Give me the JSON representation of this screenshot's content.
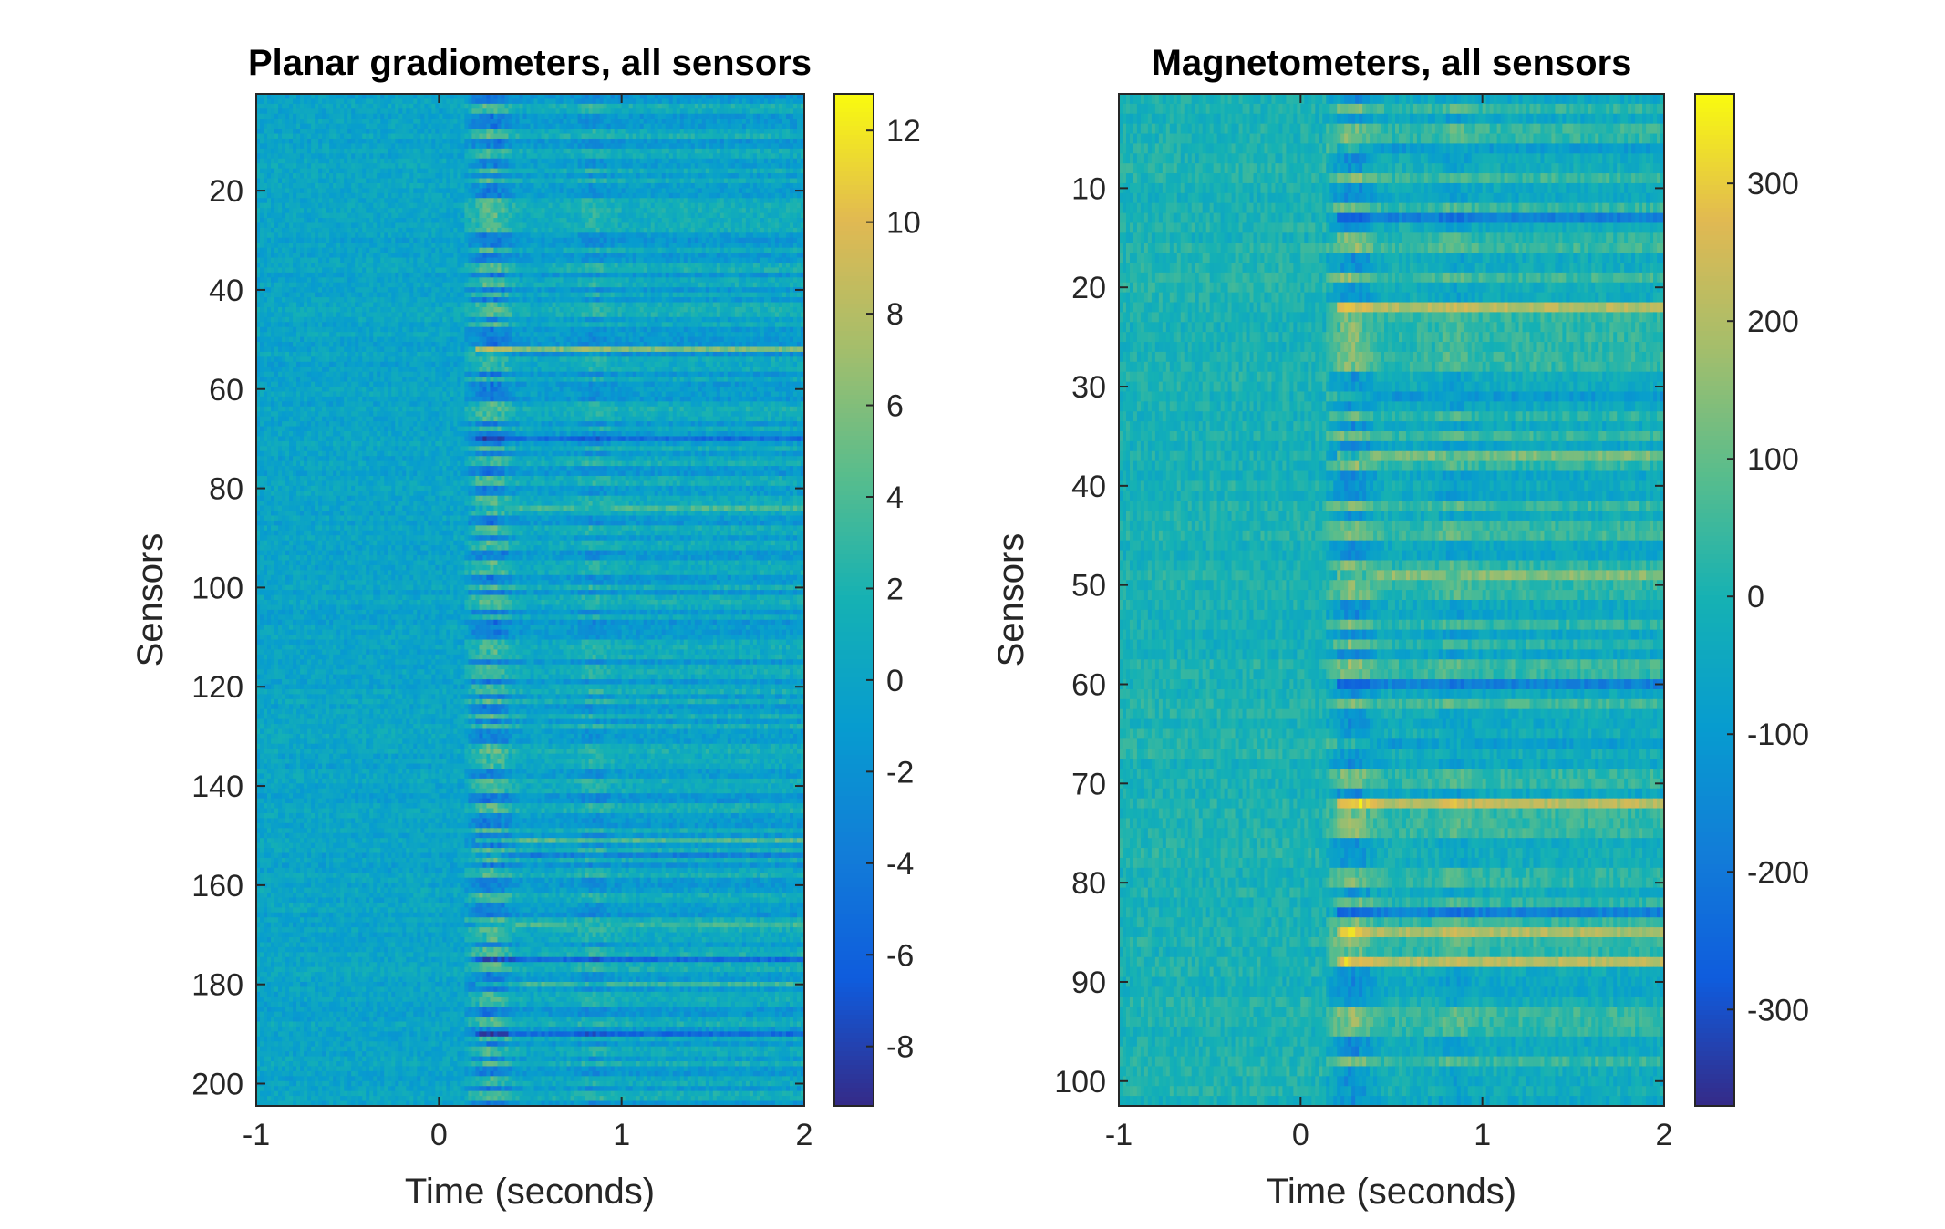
{
  "chart_data": [
    {
      "type": "heatmap",
      "title": "Planar gradiometers, all sensors",
      "xlabel": "Time (seconds)",
      "ylabel": "Sensors",
      "xlim": [
        -1,
        2
      ],
      "ylim": [
        1,
        204
      ],
      "y_direction": "reversed",
      "x_ticks": [
        "-1",
        "0",
        "1",
        "2"
      ],
      "x_tick_values": [
        -1,
        0,
        1,
        2
      ],
      "y_ticks": [
        "20",
        "40",
        "60",
        "80",
        "100",
        "120",
        "140",
        "160",
        "180",
        "200"
      ],
      "y_tick_values": [
        20,
        40,
        60,
        80,
        100,
        120,
        140,
        160,
        180,
        200
      ],
      "colorbar": {
        "colormap": "parula",
        "clim": [
          -9.3,
          12.8
        ],
        "ticks": [
          "-8",
          "-6",
          "-4",
          "-2",
          "0",
          "2",
          "4",
          "6",
          "8",
          "10",
          "12"
        ],
        "tick_values": [
          -8,
          -6,
          -4,
          -2,
          0,
          2,
          4,
          6,
          8,
          10,
          12
        ]
      },
      "n_sensors": 204,
      "notable_features": {
        "onset_time": 0.2,
        "secondary_time": 0.85,
        "strong_positive_rows": [
          52,
          84,
          151,
          168,
          180
        ],
        "strong_negative_rows": [
          53,
          70,
          154,
          175,
          190
        ]
      }
    },
    {
      "type": "heatmap",
      "title": "Magnetometers, all sensors",
      "xlabel": "Time (seconds)",
      "ylabel": "Sensors",
      "xlim": [
        -1,
        2
      ],
      "ylim": [
        1,
        102
      ],
      "y_direction": "reversed",
      "x_ticks": [
        "-1",
        "0",
        "1",
        "2"
      ],
      "x_tick_values": [
        -1,
        0,
        1,
        2
      ],
      "y_ticks": [
        "10",
        "20",
        "30",
        "40",
        "50",
        "60",
        "70",
        "80",
        "90",
        "100"
      ],
      "y_tick_values": [
        10,
        20,
        30,
        40,
        50,
        60,
        70,
        80,
        90,
        100
      ],
      "colorbar": {
        "colormap": "parula",
        "clim": [
          -370,
          365
        ],
        "ticks": [
          "-300",
          "-200",
          "-100",
          "0",
          "100",
          "200",
          "300"
        ],
        "tick_values": [
          -300,
          -200,
          -100,
          0,
          100,
          200,
          300
        ]
      },
      "n_sensors": 102,
      "notable_features": {
        "onset_time": 0.2,
        "secondary_time": 0.85,
        "strong_positive_rows": [
          22,
          37,
          49,
          72,
          85,
          88
        ],
        "strong_negative_rows": [
          6,
          13,
          31,
          60,
          66,
          83
        ]
      }
    }
  ]
}
